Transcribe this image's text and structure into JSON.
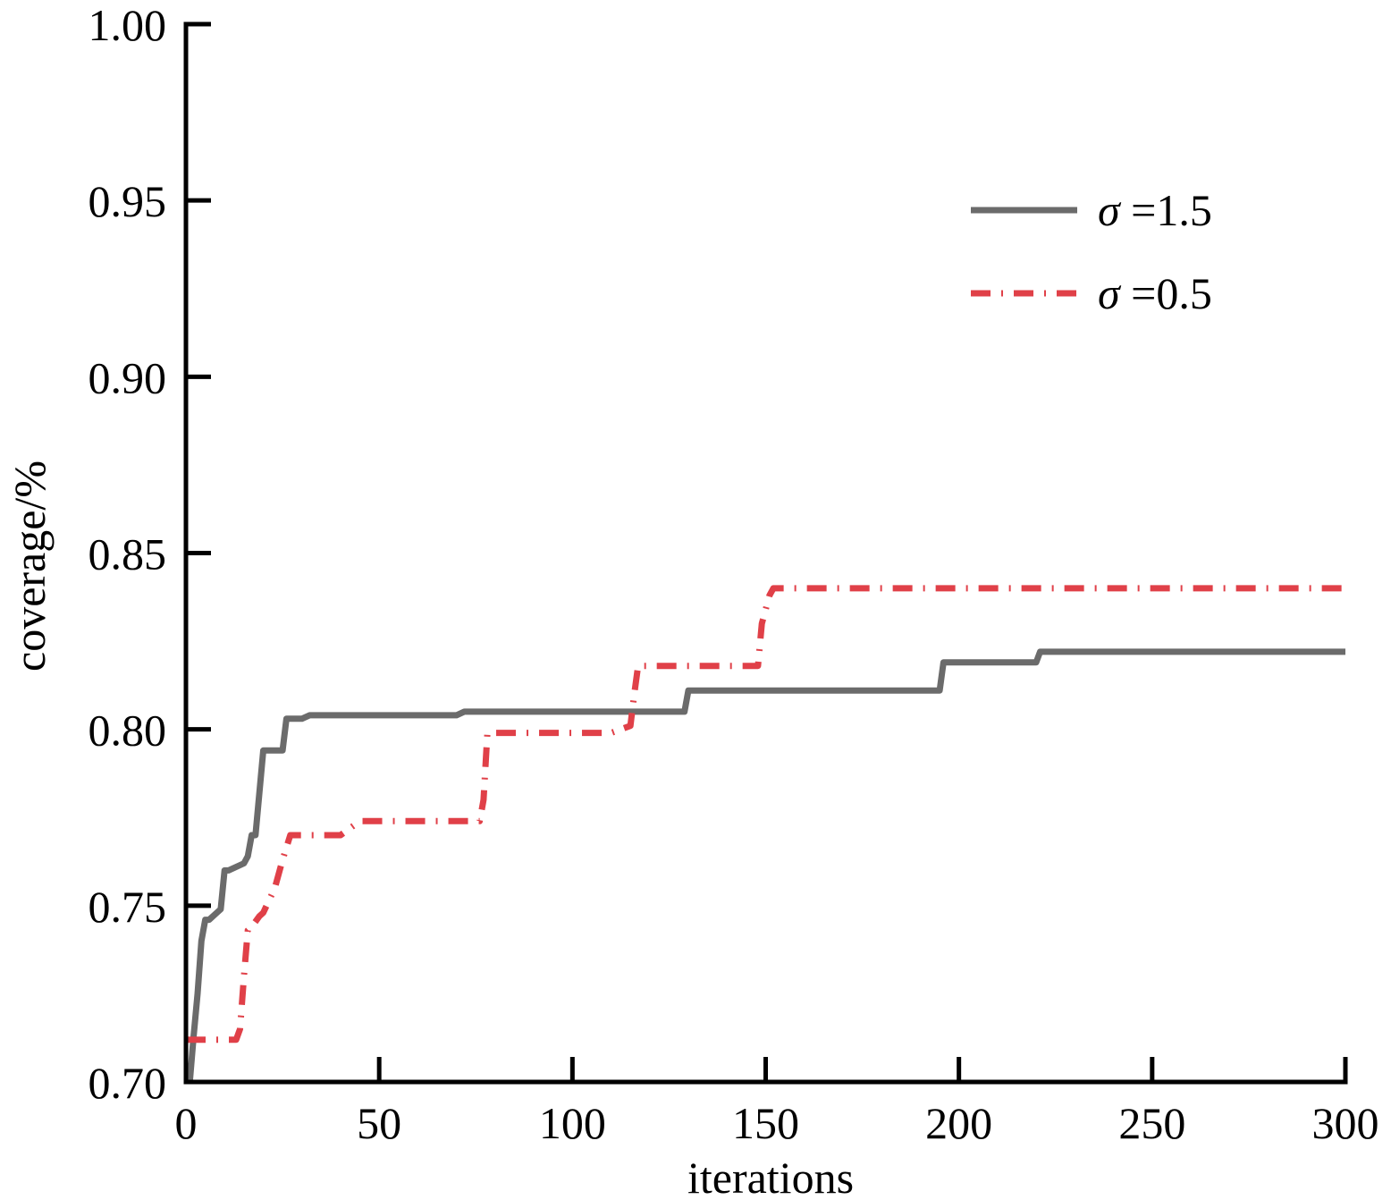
{
  "chart_data": {
    "type": "line",
    "title": "",
    "xlabel": "iterations",
    "ylabel": "coverage/%",
    "xlim": [
      0,
      300
    ],
    "ylim": [
      0.7,
      1.0
    ],
    "xticks": [
      0,
      50,
      100,
      150,
      200,
      250,
      300
    ],
    "xtick_labels": [
      "0",
      "50",
      "100",
      "150",
      "200",
      "250",
      "300"
    ],
    "yticks": [
      0.7,
      0.75,
      0.8,
      0.85,
      0.9,
      0.95,
      1.0
    ],
    "ytick_labels": [
      "0.70",
      "0.75",
      "0.80",
      "0.85",
      "0.90",
      "0.95",
      "1.00"
    ],
    "grid": false,
    "legend_position": "top-right",
    "series": [
      {
        "name": "σ =1.5",
        "name_symbol": "σ",
        "name_rest": " =1.5",
        "color": "#6b6b6b",
        "style": "solid",
        "x": [
          1,
          2,
          3,
          4,
          5,
          6,
          8,
          9,
          10,
          11,
          15,
          16,
          17,
          18,
          20,
          25,
          26,
          30,
          32,
          35,
          40,
          70,
          72,
          100,
          129,
          130,
          131,
          195,
          196,
          210,
          220,
          221,
          300
        ],
        "y": [
          0.7,
          0.713,
          0.725,
          0.74,
          0.746,
          0.746,
          0.748,
          0.749,
          0.76,
          0.76,
          0.762,
          0.764,
          0.77,
          0.77,
          0.794,
          0.794,
          0.803,
          0.803,
          0.804,
          0.804,
          0.804,
          0.804,
          0.805,
          0.805,
          0.805,
          0.811,
          0.811,
          0.811,
          0.819,
          0.819,
          0.819,
          0.822,
          0.822
        ]
      },
      {
        "name": "σ =0.5",
        "name_symbol": "σ",
        "name_rest": " =0.5",
        "color": "#e04048",
        "style": "dashdot",
        "x": [
          0,
          13,
          14,
          15,
          16,
          17,
          19,
          20,
          23,
          25,
          27,
          28,
          30,
          40,
          45,
          50,
          60,
          70,
          76,
          77,
          78,
          80,
          100,
          110,
          115,
          116,
          117,
          120,
          140,
          148,
          149,
          151,
          152,
          160,
          300
        ],
        "y": [
          0.712,
          0.712,
          0.715,
          0.73,
          0.743,
          0.744,
          0.747,
          0.748,
          0.755,
          0.763,
          0.77,
          0.77,
          0.77,
          0.77,
          0.774,
          0.774,
          0.774,
          0.774,
          0.774,
          0.78,
          0.799,
          0.799,
          0.799,
          0.799,
          0.801,
          0.81,
          0.818,
          0.818,
          0.818,
          0.818,
          0.83,
          0.838,
          0.84,
          0.84,
          0.84
        ]
      }
    ]
  }
}
